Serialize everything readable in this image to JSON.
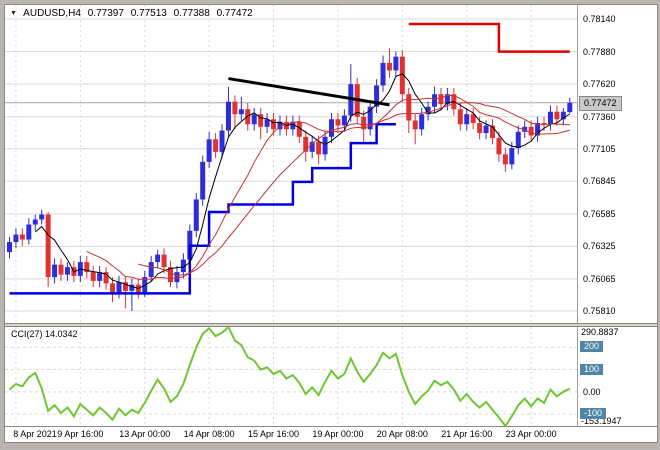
{
  "quote_bar": {
    "symbol": "AUDUSD,H4",
    "open": "0.77397",
    "high": "0.77513",
    "low": "0.77388",
    "close": "0.77472"
  },
  "chart_data": {
    "type": "candlestick",
    "symbol": "AUDUSD",
    "timeframe": "H4",
    "price_axis": {
      "labels": [
        "0.78140",
        "0.77880",
        "0.77620",
        "0.77360",
        "0.77105",
        "0.76845",
        "0.76585",
        "0.76325",
        "0.76065",
        "0.75810"
      ],
      "min": 0.75714,
      "max": 0.78252,
      "current": "0.77472"
    },
    "time_axis": {
      "labels": [
        "8 Apr 2021",
        "9 Apr 16:00",
        "13 Apr 00:00",
        "14 Apr 08:00",
        "15 Apr 16:00",
        "19 Apr 00:00",
        "20 Apr 08:00",
        "21 Apr 16:00",
        "23 Apr 00:00"
      ],
      "label_indices": [
        1,
        11,
        21,
        31,
        41,
        51,
        61,
        71,
        81
      ]
    },
    "candles": [
      [
        0.7628,
        0.764,
        0.7623,
        0.7636
      ],
      [
        0.7636,
        0.7647,
        0.7631,
        0.7642
      ],
      [
        0.7642,
        0.7647,
        0.7633,
        0.7638
      ],
      [
        0.7638,
        0.7655,
        0.7634,
        0.765
      ],
      [
        0.765,
        0.7658,
        0.7645,
        0.7654
      ],
      [
        0.7654,
        0.7662,
        0.765,
        0.7658
      ],
      [
        0.7658,
        0.766,
        0.76,
        0.7608
      ],
      [
        0.7608,
        0.7623,
        0.7603,
        0.7618
      ],
      [
        0.7618,
        0.7623,
        0.7605,
        0.761
      ],
      [
        0.761,
        0.762,
        0.7605,
        0.7616
      ],
      [
        0.7616,
        0.7621,
        0.7604,
        0.7609
      ],
      [
        0.7609,
        0.7625,
        0.7604,
        0.762
      ],
      [
        0.762,
        0.7625,
        0.7607,
        0.7612
      ],
      [
        0.7612,
        0.7617,
        0.76,
        0.7605
      ],
      [
        0.7605,
        0.7617,
        0.76,
        0.7612
      ],
      [
        0.7612,
        0.7616,
        0.7598,
        0.7603
      ],
      [
        0.7603,
        0.7608,
        0.7588,
        0.7596
      ],
      [
        0.7596,
        0.7609,
        0.7591,
        0.7604
      ],
      [
        0.7604,
        0.7608,
        0.7583,
        0.7597
      ],
      [
        0.7597,
        0.7607,
        0.7581,
        0.7602
      ],
      [
        0.7602,
        0.7607,
        0.7591,
        0.7596
      ],
      [
        0.7596,
        0.7613,
        0.7592,
        0.7608
      ],
      [
        0.7608,
        0.7625,
        0.7604,
        0.762
      ],
      [
        0.762,
        0.763,
        0.7615,
        0.7626
      ],
      [
        0.7626,
        0.7631,
        0.7611,
        0.7616
      ],
      [
        0.7616,
        0.7621,
        0.76,
        0.7604
      ],
      [
        0.7604,
        0.7617,
        0.7599,
        0.7612
      ],
      [
        0.7612,
        0.7627,
        0.7607,
        0.7622
      ],
      [
        0.7622,
        0.765,
        0.7618,
        0.7645
      ],
      [
        0.7645,
        0.7675,
        0.764,
        0.767
      ],
      [
        0.767,
        0.7705,
        0.7665,
        0.77
      ],
      [
        0.77,
        0.7724,
        0.7695,
        0.7718
      ],
      [
        0.7718,
        0.7723,
        0.7703,
        0.7708
      ],
      [
        0.7708,
        0.773,
        0.7703,
        0.7725
      ],
      [
        0.7725,
        0.776,
        0.772,
        0.7748
      ],
      [
        0.7748,
        0.7753,
        0.7726,
        0.7738
      ],
      [
        0.7738,
        0.7752,
        0.7733,
        0.7742
      ],
      [
        0.7742,
        0.7747,
        0.7725,
        0.773
      ],
      [
        0.773,
        0.7743,
        0.7725,
        0.7738
      ],
      [
        0.7738,
        0.7743,
        0.7718,
        0.7728
      ],
      [
        0.7728,
        0.7739,
        0.7723,
        0.7734
      ],
      [
        0.7734,
        0.7739,
        0.7721,
        0.7726
      ],
      [
        0.7726,
        0.7737,
        0.7721,
        0.7732
      ],
      [
        0.7732,
        0.7737,
        0.7721,
        0.7726
      ],
      [
        0.7726,
        0.7737,
        0.7721,
        0.7732
      ],
      [
        0.7732,
        0.7737,
        0.7715,
        0.772
      ],
      [
        0.772,
        0.7725,
        0.77,
        0.7708
      ],
      [
        0.7708,
        0.7721,
        0.7703,
        0.7716
      ],
      [
        0.7716,
        0.7721,
        0.7698,
        0.7706
      ],
      [
        0.7706,
        0.7725,
        0.7701,
        0.772
      ],
      [
        0.772,
        0.7739,
        0.7715,
        0.7734
      ],
      [
        0.7734,
        0.7739,
        0.7723,
        0.7729
      ],
      [
        0.7729,
        0.7742,
        0.7724,
        0.7737
      ],
      [
        0.7737,
        0.7778,
        0.7732,
        0.7762
      ],
      [
        0.7762,
        0.7767,
        0.7731,
        0.7736
      ],
      [
        0.7736,
        0.7741,
        0.7716,
        0.7726
      ],
      [
        0.7726,
        0.7749,
        0.7721,
        0.7744
      ],
      [
        0.7744,
        0.7766,
        0.7739,
        0.7761
      ],
      [
        0.7761,
        0.7785,
        0.7756,
        0.7779
      ],
      [
        0.7779,
        0.77905,
        0.7767,
        0.7773
      ],
      [
        0.7773,
        0.7788,
        0.7768,
        0.7784
      ],
      [
        0.7784,
        0.7789,
        0.7748,
        0.7754
      ],
      [
        0.7754,
        0.7759,
        0.7723,
        0.7733
      ],
      [
        0.7733,
        0.7738,
        0.7714,
        0.7726
      ],
      [
        0.7726,
        0.7743,
        0.7721,
        0.7738
      ],
      [
        0.7738,
        0.7748,
        0.7733,
        0.7744
      ],
      [
        0.7744,
        0.776,
        0.7739,
        0.7754
      ],
      [
        0.7754,
        0.7759,
        0.7741,
        0.7746
      ],
      [
        0.7746,
        0.7759,
        0.7741,
        0.7754
      ],
      [
        0.7754,
        0.7759,
        0.7737,
        0.7742
      ],
      [
        0.7742,
        0.7747,
        0.7725,
        0.773
      ],
      [
        0.773,
        0.7743,
        0.7725,
        0.7738
      ],
      [
        0.7738,
        0.7743,
        0.7726,
        0.7731
      ],
      [
        0.7731,
        0.7736,
        0.7718,
        0.7723
      ],
      [
        0.7723,
        0.7733,
        0.7718,
        0.7729
      ],
      [
        0.7729,
        0.7734,
        0.7714,
        0.7719
      ],
      [
        0.7719,
        0.7724,
        0.77,
        0.7706
      ],
      [
        0.7706,
        0.7711,
        0.7692,
        0.7698
      ],
      [
        0.7698,
        0.7716,
        0.7694,
        0.7711
      ],
      [
        0.7711,
        0.7729,
        0.7706,
        0.7724
      ],
      [
        0.7724,
        0.7733,
        0.7719,
        0.7728
      ],
      [
        0.7728,
        0.7733,
        0.7716,
        0.7721
      ],
      [
        0.7721,
        0.7736,
        0.7716,
        0.7731
      ],
      [
        0.7731,
        0.7736,
        0.7725,
        0.773
      ],
      [
        0.773,
        0.7745,
        0.7725,
        0.774
      ],
      [
        0.774,
        0.7745,
        0.7729,
        0.7734
      ],
      [
        0.7734,
        0.7743,
        0.7729,
        0.774
      ],
      [
        0.77397,
        0.77513,
        0.77388,
        0.77472
      ]
    ],
    "overlays": {
      "ma_fast": {
        "period": 5,
        "color": "#000000",
        "width": 1
      },
      "ma_mid": {
        "period": 13,
        "color": "#c83232",
        "width": 1
      },
      "ma_slow": {
        "period": 21,
        "color": "#c83232",
        "width": 1
      },
      "trend_stop_lower": {
        "color": "#0000e0",
        "segments": [
          {
            "from": 0,
            "to": 28,
            "level": 0.7595
          },
          {
            "from": 28,
            "to": 31,
            "level": 0.7633
          },
          {
            "from": 31,
            "to": 34,
            "level": 0.766
          },
          {
            "from": 34,
            "to": 44,
            "level": 0.7666
          },
          {
            "from": 44,
            "to": 47,
            "level": 0.7684
          },
          {
            "from": 47,
            "to": 53,
            "level": 0.7695
          },
          {
            "from": 53,
            "to": 57,
            "level": 0.7715
          },
          {
            "from": 57,
            "to": 60,
            "level": 0.773
          }
        ]
      },
      "trend_stop_upper": {
        "color": "#e00000",
        "segments": [
          {
            "from": 62,
            "to": 76,
            "level": 0.781
          },
          {
            "from": 76,
            "to": 87,
            "level": 0.7788
          }
        ]
      },
      "trendline": {
        "color": "#000000",
        "from": {
          "index": 34,
          "price": 0.77665
        },
        "to": {
          "index": 59,
          "price": 0.77455
        }
      }
    },
    "indicator": {
      "name": "CCI",
      "period": 27,
      "label": "CCI(27) 14.0342",
      "current": 14.0342,
      "max": 290.8837,
      "min": -153.1947,
      "color": "#6cc832",
      "axis": {
        "top_label": "290.8837",
        "bottom_label": "-153.1947",
        "zero_label": "0.00",
        "levels": [
          200,
          100,
          -100
        ]
      },
      "values": [
        10,
        35,
        25,
        65,
        85,
        15,
        -85,
        -60,
        -95,
        -70,
        -110,
        -55,
        -80,
        -105,
        -70,
        -95,
        -125,
        -75,
        -105,
        -80,
        -95,
        -50,
        5,
        55,
        15,
        -45,
        -20,
        35,
        120,
        200,
        260,
        285,
        250,
        265,
        290.8837,
        230,
        210,
        155,
        140,
        100,
        110,
        80,
        95,
        60,
        75,
        40,
        -10,
        20,
        -15,
        45,
        95,
        60,
        80,
        150,
        90,
        45,
        80,
        120,
        175,
        150,
        170,
        75,
        0,
        -55,
        -20,
        5,
        50,
        30,
        45,
        10,
        -40,
        -10,
        -45,
        -70,
        -45,
        -80,
        -115,
        -153.1947,
        -110,
        -60,
        -30,
        -65,
        -30,
        -50,
        10,
        -20,
        0,
        14.0342
      ]
    },
    "colors": {
      "background": "#ffffff",
      "frame": "#b9b6b1",
      "grid": "#d9d9d9",
      "bid_line": "#a8a8a8",
      "candle_up": "#2e2ed8",
      "candle_down": "#e03232",
      "level_badge": "#4f86a5",
      "price_badge_bg": "#c9c9c9",
      "text": "#000000"
    }
  }
}
